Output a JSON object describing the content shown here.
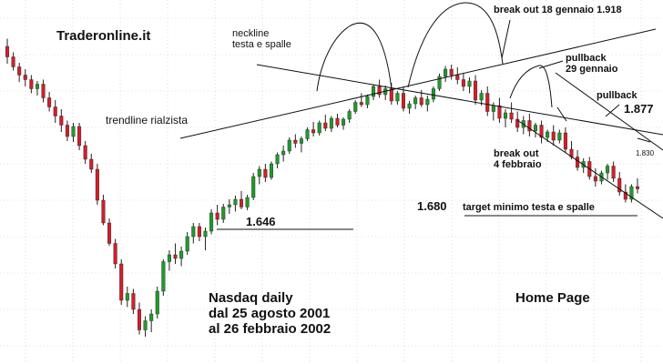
{
  "chart_data": {
    "type": "candlestick",
    "brand": "Traderonline.it",
    "caption_lines": [
      "Nasdaq daily",
      "dal 25 agosto 2001",
      "al 26 febbraio 2002"
    ],
    "home_link": "Home Page",
    "colors": {
      "up": "#1f9a2a",
      "down": "#d11f2a",
      "wick": "#222222",
      "grid": "#b9c8d6",
      "line": "#111111"
    },
    "grid": true,
    "price_levels": [
      "1.646",
      "1.680",
      "1.877",
      "1.830"
    ],
    "annotations": {
      "neckline": [
        "neckline",
        "testa e spalle"
      ],
      "trendline": "trendline rialzista",
      "breakout_jan": "break out 18 gennaio 1.918",
      "pullback_jan": [
        "pullback",
        "29 gennaio"
      ],
      "breakout_feb": [
        "break out",
        "4 febbraio"
      ],
      "pullback_feb": "pullback",
      "target": "target minimo testa e spalle"
    },
    "bars": [
      [
        2048,
        2065,
        2010,
        2025
      ],
      [
        2025,
        2035,
        1995,
        2003
      ],
      [
        2003,
        2012,
        1970,
        1985
      ],
      [
        1985,
        1998,
        1960,
        1975
      ],
      [
        1975,
        1985,
        1945,
        1955
      ],
      [
        1955,
        1972,
        1940,
        1965
      ],
      [
        1965,
        1975,
        1925,
        1935
      ],
      [
        1935,
        1948,
        1905,
        1915
      ],
      [
        1915,
        1930,
        1880,
        1895
      ],
      [
        1895,
        1910,
        1860,
        1875
      ],
      [
        1875,
        1885,
        1840,
        1850
      ],
      [
        1850,
        1880,
        1838,
        1872
      ],
      [
        1872,
        1880,
        1820,
        1830
      ],
      [
        1830,
        1840,
        1790,
        1800
      ],
      [
        1800,
        1812,
        1770,
        1778
      ],
      [
        1778,
        1790,
        1700,
        1710
      ],
      [
        1710,
        1722,
        1655,
        1660
      ],
      [
        1660,
        1670,
        1610,
        1615
      ],
      [
        1615,
        1625,
        1560,
        1570
      ],
      [
        1570,
        1580,
        1480,
        1490
      ],
      [
        1490,
        1520,
        1475,
        1505
      ],
      [
        1505,
        1515,
        1460,
        1470
      ],
      [
        1470,
        1485,
        1415,
        1425
      ],
      [
        1425,
        1455,
        1410,
        1445
      ],
      [
        1445,
        1470,
        1420,
        1460
      ],
      [
        1460,
        1520,
        1450,
        1510
      ],
      [
        1510,
        1580,
        1500,
        1575
      ],
      [
        1575,
        1600,
        1555,
        1590
      ],
      [
        1590,
        1615,
        1570,
        1582
      ],
      [
        1582,
        1608,
        1565,
        1598
      ],
      [
        1598,
        1640,
        1590,
        1630
      ],
      [
        1630,
        1660,
        1615,
        1652
      ],
      [
        1652,
        1660,
        1620,
        1630
      ],
      [
        1630,
        1650,
        1600,
        1642
      ],
      [
        1642,
        1690,
        1635,
        1682
      ],
      [
        1682,
        1700,
        1655,
        1668
      ],
      [
        1668,
        1702,
        1660,
        1695
      ],
      [
        1695,
        1712,
        1680,
        1700
      ],
      [
        1700,
        1720,
        1685,
        1712
      ],
      [
        1712,
        1730,
        1690,
        1695
      ],
      [
        1695,
        1722,
        1688,
        1716
      ],
      [
        1716,
        1770,
        1710,
        1762
      ],
      [
        1762,
        1785,
        1745,
        1778
      ],
      [
        1778,
        1790,
        1750,
        1760
      ],
      [
        1760,
        1795,
        1755,
        1790
      ],
      [
        1790,
        1815,
        1780,
        1810
      ],
      [
        1810,
        1830,
        1795,
        1818
      ],
      [
        1818,
        1848,
        1812,
        1842
      ],
      [
        1842,
        1855,
        1825,
        1835
      ],
      [
        1835,
        1850,
        1815,
        1845
      ],
      [
        1845,
        1870,
        1840,
        1865
      ],
      [
        1865,
        1882,
        1850,
        1858
      ],
      [
        1858,
        1885,
        1852,
        1880
      ],
      [
        1880,
        1898,
        1862,
        1868
      ],
      [
        1868,
        1895,
        1860,
        1890
      ],
      [
        1890,
        1900,
        1870,
        1875
      ],
      [
        1875,
        1892,
        1865,
        1888
      ],
      [
        1888,
        1910,
        1880,
        1905
      ],
      [
        1905,
        1930,
        1900,
        1925
      ],
      [
        1925,
        1945,
        1915,
        1920
      ],
      [
        1920,
        1942,
        1912,
        1938
      ],
      [
        1938,
        1965,
        1930,
        1960
      ],
      [
        1960,
        1975,
        1935,
        1942
      ],
      [
        1942,
        1962,
        1930,
        1955
      ],
      [
        1955,
        1968,
        1920,
        1928
      ],
      [
        1928,
        1950,
        1920,
        1945
      ],
      [
        1945,
        1958,
        1905,
        1912
      ],
      [
        1912,
        1928,
        1900,
        1922
      ],
      [
        1922,
        1940,
        1910,
        1935
      ],
      [
        1935,
        1952,
        1915,
        1920
      ],
      [
        1920,
        1940,
        1905,
        1932
      ],
      [
        1932,
        1960,
        1925,
        1955
      ],
      [
        1955,
        1988,
        1950,
        1982
      ],
      [
        1982,
        2005,
        1970,
        1998
      ],
      [
        1998,
        2008,
        1975,
        1985
      ],
      [
        1985,
        2002,
        1965,
        1975
      ],
      [
        1975,
        1990,
        1950,
        1960
      ],
      [
        1960,
        1980,
        1945,
        1972
      ],
      [
        1972,
        1985,
        1920,
        1930
      ],
      [
        1930,
        1952,
        1918,
        1945
      ],
      [
        1945,
        1960,
        1895,
        1905
      ],
      [
        1905,
        1925,
        1885,
        1918
      ],
      [
        1918,
        1935,
        1880,
        1890
      ],
      [
        1890,
        1910,
        1870,
        1902
      ],
      [
        1902,
        1925,
        1880,
        1888
      ],
      [
        1888,
        1905,
        1860,
        1870
      ],
      [
        1870,
        1895,
        1855,
        1885
      ],
      [
        1885,
        1900,
        1850,
        1862
      ],
      [
        1862,
        1880,
        1848,
        1875
      ],
      [
        1875,
        1885,
        1835,
        1848
      ],
      [
        1848,
        1865,
        1838,
        1860
      ],
      [
        1860,
        1875,
        1830,
        1842
      ],
      [
        1842,
        1865,
        1835,
        1858
      ],
      [
        1858,
        1870,
        1815,
        1822
      ],
      [
        1822,
        1840,
        1800,
        1805
      ],
      [
        1805,
        1820,
        1775,
        1782
      ],
      [
        1782,
        1802,
        1770,
        1795
      ],
      [
        1795,
        1805,
        1755,
        1762
      ],
      [
        1762,
        1780,
        1740,
        1752
      ],
      [
        1752,
        1775,
        1745,
        1770
      ],
      [
        1770,
        1790,
        1755,
        1785
      ],
      [
        1785,
        1795,
        1750,
        1758
      ],
      [
        1758,
        1772,
        1720,
        1728
      ],
      [
        1728,
        1745,
        1705,
        1712
      ],
      [
        1712,
        1745,
        1705,
        1740
      ],
      [
        1740,
        1758,
        1725,
        1735
      ]
    ]
  }
}
